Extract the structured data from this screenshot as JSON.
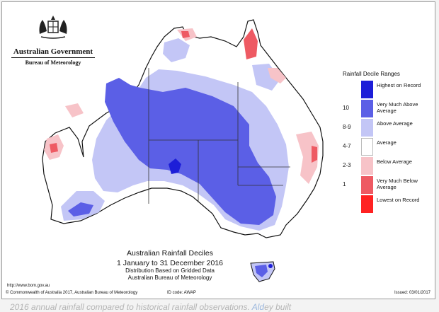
{
  "logo": {
    "emblem_icon": "coat-of-arms-icon",
    "government": "Australian Government",
    "bureau": "Bureau of Meteorology"
  },
  "legend": {
    "title": "Rainfall Decile Ranges",
    "items": [
      {
        "decile": "",
        "label": "Highest on Record",
        "color": "#1d1ed8"
      },
      {
        "decile": "10",
        "label": "Very Much Above Average",
        "color": "#5b5fe6"
      },
      {
        "decile": "8-9",
        "label": "Above Average",
        "color": "#c3c6f6"
      },
      {
        "decile": "4-7",
        "label": "Average",
        "color": "#ffffff"
      },
      {
        "decile": "2-3",
        "label": "Below Average",
        "color": "#f7c3c8"
      },
      {
        "decile": "1",
        "label": "Very Much Below Average",
        "color": "#ee5a63"
      },
      {
        "decile": "",
        "label": "Lowest on Record",
        "color": "#ff2222"
      }
    ]
  },
  "caption": {
    "title": "Australian Rainfall Deciles",
    "dates": "1 January to 31 December 2016",
    "line1": "Distribution Based on Gridded Data",
    "line2": "Australian Bureau of Meteorology"
  },
  "url": "http://www.bom.gov.au",
  "footer": {
    "copyright": "© Commonwealth of Australia 2017, Australian Bureau of Meteorology",
    "id_code": "ID code: AWAP",
    "issued": "Issued: 03/01/2017"
  },
  "below_text": {
    "part1": "2016 annual rainfall compared to historical rainfall observations. ",
    "link": "Ald",
    "part2": "ey built"
  }
}
